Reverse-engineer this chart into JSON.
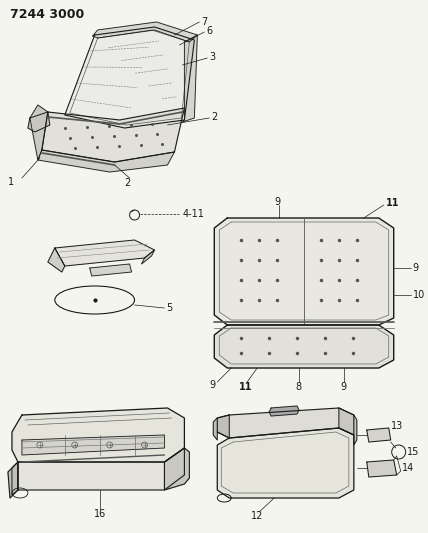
{
  "title": "7244 3000",
  "bg": "#f5f5f0",
  "lc": "#1a1a1a",
  "figsize": [
    4.28,
    5.33
  ],
  "dpi": 100,
  "gray": "#888888",
  "lightgray": "#cccccc"
}
